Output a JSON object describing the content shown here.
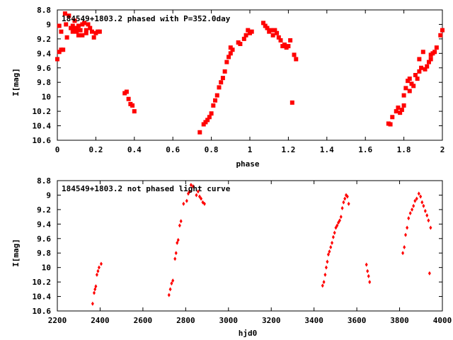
{
  "colors": {
    "marker": "#ff0000",
    "axis": "#000000",
    "background": "#ffffff"
  },
  "chart_data": [
    {
      "type": "scatter",
      "title": "184549+1803.2 phased with P=352.0day",
      "xlabel": "phase",
      "ylabel": "I[mag]",
      "xlim": [
        0,
        2
      ],
      "ylim": [
        10.6,
        8.8
      ],
      "y_inverted": true,
      "grid": false,
      "marker": "square",
      "xticks": [
        "0",
        "0.2",
        "0.4",
        "0.6",
        "0.8",
        "1",
        "1.2",
        "1.4",
        "1.6",
        "1.8",
        "2"
      ],
      "xtick_values": [
        0,
        0.2,
        0.4,
        0.6,
        0.8,
        1.0,
        1.2,
        1.4,
        1.6,
        1.8,
        2.0
      ],
      "yticks": [
        "8.8",
        "9",
        "9.2",
        "9.4",
        "9.6",
        "9.8",
        "10",
        "10.2",
        "10.4",
        "10.6"
      ],
      "ytick_values": [
        8.8,
        9.0,
        9.2,
        9.4,
        9.6,
        9.8,
        10.0,
        10.2,
        10.4,
        10.6
      ],
      "points": [
        [
          0.0,
          9.48
        ],
        [
          0.01,
          9.38
        ],
        [
          0.01,
          9.02
        ],
        [
          0.02,
          9.35
        ],
        [
          0.02,
          9.1
        ],
        [
          0.03,
          9.35
        ],
        [
          0.04,
          8.85
        ],
        [
          0.045,
          9.0
        ],
        [
          0.05,
          9.18
        ],
        [
          0.06,
          8.88
        ],
        [
          0.07,
          9.05
        ],
        [
          0.08,
          9.1
        ],
        [
          0.08,
          9.02
        ],
        [
          0.09,
          9.05
        ],
        [
          0.09,
          8.95
        ],
        [
          0.1,
          9.05
        ],
        [
          0.1,
          9.1
        ],
        [
          0.11,
          9.02
        ],
        [
          0.11,
          9.15
        ],
        [
          0.12,
          9.08
        ],
        [
          0.13,
          9.0
        ],
        [
          0.13,
          9.15
        ],
        [
          0.14,
          8.98
        ],
        [
          0.15,
          9.12
        ],
        [
          0.15,
          9.08
        ],
        [
          0.16,
          9.0
        ],
        [
          0.17,
          9.05
        ],
        [
          0.18,
          9.1
        ],
        [
          0.19,
          9.18
        ],
        [
          0.2,
          9.12
        ],
        [
          0.21,
          9.1
        ],
        [
          0.22,
          9.1
        ],
        [
          0.35,
          9.95
        ],
        [
          0.36,
          9.93
        ],
        [
          0.37,
          10.03
        ],
        [
          0.38,
          10.1
        ],
        [
          0.39,
          10.12
        ],
        [
          0.4,
          10.2
        ],
        [
          0.74,
          10.49
        ],
        [
          0.76,
          10.38
        ],
        [
          0.77,
          10.35
        ],
        [
          0.78,
          10.32
        ],
        [
          0.79,
          10.28
        ],
        [
          0.8,
          10.23
        ],
        [
          0.81,
          10.12
        ],
        [
          0.82,
          10.05
        ],
        [
          0.83,
          9.98
        ],
        [
          0.84,
          9.87
        ],
        [
          0.85,
          9.8
        ],
        [
          0.86,
          9.74
        ],
        [
          0.87,
          9.65
        ],
        [
          0.88,
          9.52
        ],
        [
          0.89,
          9.45
        ],
        [
          0.9,
          9.4
        ],
        [
          0.9,
          9.32
        ],
        [
          0.91,
          9.35
        ],
        [
          0.94,
          9.25
        ],
        [
          0.95,
          9.27
        ],
        [
          0.97,
          9.2
        ],
        [
          0.98,
          9.15
        ],
        [
          0.99,
          9.08
        ],
        [
          1.0,
          9.12
        ],
        [
          1.01,
          9.1
        ],
        [
          1.07,
          8.98
        ],
        [
          1.08,
          9.02
        ],
        [
          1.09,
          9.05
        ],
        [
          1.1,
          9.1
        ],
        [
          1.11,
          9.08
        ],
        [
          1.12,
          9.15
        ],
        [
          1.13,
          9.08
        ],
        [
          1.14,
          9.12
        ],
        [
          1.15,
          9.18
        ],
        [
          1.16,
          9.22
        ],
        [
          1.17,
          9.3
        ],
        [
          1.18,
          9.28
        ],
        [
          1.19,
          9.32
        ],
        [
          1.2,
          9.3
        ],
        [
          1.21,
          9.22
        ],
        [
          1.22,
          10.08
        ],
        [
          1.23,
          9.42
        ],
        [
          1.24,
          9.48
        ],
        [
          1.72,
          10.37
        ],
        [
          1.73,
          10.38
        ],
        [
          1.74,
          10.28
        ],
        [
          1.76,
          10.2
        ],
        [
          1.77,
          10.15
        ],
        [
          1.78,
          10.22
        ],
        [
          1.79,
          10.18
        ],
        [
          1.8,
          10.12
        ],
        [
          1.8,
          9.98
        ],
        [
          1.81,
          9.88
        ],
        [
          1.82,
          9.78
        ],
        [
          1.83,
          9.92
        ],
        [
          1.83,
          9.75
        ],
        [
          1.84,
          9.82
        ],
        [
          1.85,
          9.85
        ],
        [
          1.86,
          9.7
        ],
        [
          1.87,
          9.75
        ],
        [
          1.88,
          9.65
        ],
        [
          1.88,
          9.48
        ],
        [
          1.89,
          9.6
        ],
        [
          1.9,
          9.38
        ],
        [
          1.91,
          9.62
        ],
        [
          1.92,
          9.58
        ],
        [
          1.93,
          9.52
        ],
        [
          1.94,
          9.48
        ],
        [
          1.94,
          9.42
        ],
        [
          1.95,
          9.4
        ],
        [
          1.96,
          9.38
        ],
        [
          1.97,
          9.32
        ],
        [
          1.99,
          9.15
        ],
        [
          2.0,
          9.08
        ]
      ]
    },
    {
      "type": "scatter",
      "title": "184549+1803.2 not phased light curve",
      "xlabel": "hjd0",
      "ylabel": "I[mag]",
      "xlim": [
        2200,
        4000
      ],
      "ylim": [
        10.6,
        8.8
      ],
      "y_inverted": true,
      "grid": false,
      "marker": "diamond",
      "xticks": [
        "2200",
        "2400",
        "2600",
        "2800",
        "3000",
        "3200",
        "3400",
        "3600",
        "3800",
        "4000"
      ],
      "xtick_values": [
        2200,
        2400,
        2600,
        2800,
        3000,
        3200,
        3400,
        3600,
        3800,
        4000
      ],
      "yticks": [
        "8.8",
        "9",
        "9.2",
        "9.4",
        "9.6",
        "9.8",
        "10",
        "10.2",
        "10.4",
        "10.6"
      ],
      "ytick_values": [
        8.8,
        9.0,
        9.2,
        9.4,
        9.6,
        9.8,
        10.0,
        10.2,
        10.4,
        10.6
      ],
      "points": [
        [
          2365,
          10.5
        ],
        [
          2372,
          10.35
        ],
        [
          2376,
          10.3
        ],
        [
          2380,
          10.26
        ],
        [
          2385,
          10.1
        ],
        [
          2390,
          10.05
        ],
        [
          2395,
          10.0
        ],
        [
          2405,
          9.95
        ],
        [
          2722,
          10.38
        ],
        [
          2728,
          10.3
        ],
        [
          2734,
          10.22
        ],
        [
          2740,
          10.18
        ],
        [
          2750,
          9.88
        ],
        [
          2755,
          9.8
        ],
        [
          2760,
          9.66
        ],
        [
          2765,
          9.62
        ],
        [
          2772,
          9.42
        ],
        [
          2778,
          9.36
        ],
        [
          2790,
          9.12
        ],
        [
          2805,
          9.08
        ],
        [
          2812,
          8.98
        ],
        [
          2818,
          8.95
        ],
        [
          2825,
          8.86
        ],
        [
          2835,
          8.88
        ],
        [
          2850,
          9.0
        ],
        [
          2858,
          8.95
        ],
        [
          2865,
          9.02
        ],
        [
          2872,
          9.05
        ],
        [
          2880,
          9.1
        ],
        [
          2888,
          9.12
        ],
        [
          3440,
          10.25
        ],
        [
          3446,
          10.2
        ],
        [
          3452,
          10.1
        ],
        [
          3457,
          10.0
        ],
        [
          3462,
          9.92
        ],
        [
          3467,
          9.82
        ],
        [
          3472,
          9.78
        ],
        [
          3478,
          9.72
        ],
        [
          3484,
          9.66
        ],
        [
          3490,
          9.58
        ],
        [
          3496,
          9.52
        ],
        [
          3502,
          9.45
        ],
        [
          3508,
          9.42
        ],
        [
          3514,
          9.38
        ],
        [
          3520,
          9.35
        ],
        [
          3526,
          9.3
        ],
        [
          3532,
          9.18
        ],
        [
          3538,
          9.1
        ],
        [
          3544,
          9.05
        ],
        [
          3550,
          9.0
        ],
        [
          3556,
          9.02
        ],
        [
          3562,
          9.12
        ],
        [
          3645,
          9.96
        ],
        [
          3650,
          10.05
        ],
        [
          3655,
          10.12
        ],
        [
          3660,
          10.2
        ],
        [
          3815,
          9.8
        ],
        [
          3822,
          9.72
        ],
        [
          3828,
          9.55
        ],
        [
          3835,
          9.45
        ],
        [
          3842,
          9.32
        ],
        [
          3850,
          9.25
        ],
        [
          3858,
          9.2
        ],
        [
          3865,
          9.15
        ],
        [
          3872,
          9.08
        ],
        [
          3880,
          9.05
        ],
        [
          3890,
          8.98
        ],
        [
          3898,
          9.02
        ],
        [
          3905,
          9.1
        ],
        [
          3912,
          9.15
        ],
        [
          3920,
          9.22
        ],
        [
          3928,
          9.28
        ],
        [
          3935,
          9.35
        ],
        [
          3940,
          10.08
        ],
        [
          3945,
          9.45
        ]
      ]
    }
  ]
}
